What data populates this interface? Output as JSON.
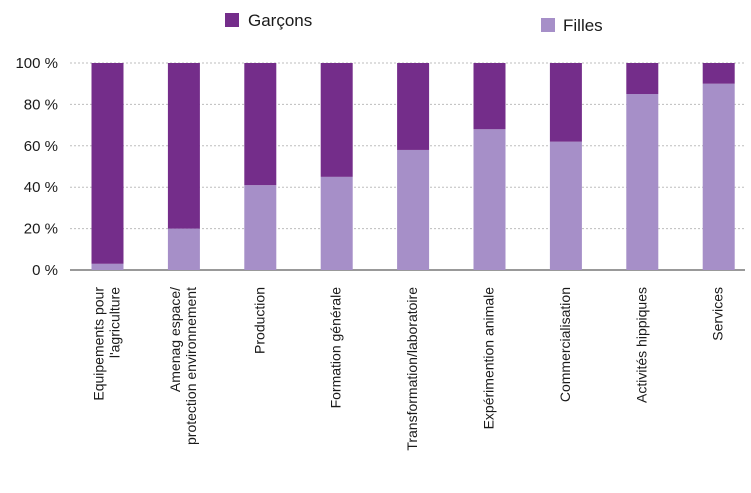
{
  "chart_data": {
    "type": "bar",
    "stacked": true,
    "percent_stacked": true,
    "categories": [
      [
        "Equipements pour",
        "l'agriculture"
      ],
      [
        "Amenag espace/",
        "protection environnement"
      ],
      [
        "Production"
      ],
      [
        "Formation générale"
      ],
      [
        "Transformation/laboratoire"
      ],
      [
        "Expérimention animale"
      ],
      [
        "Commercialisation"
      ],
      [
        "Activités hippiques"
      ],
      [
        "Services"
      ]
    ],
    "series": [
      {
        "name": "Filles",
        "color": "#a68fc8",
        "values": [
          3,
          20,
          41,
          45,
          58,
          68,
          62,
          85,
          90
        ]
      },
      {
        "name": "Garçons",
        "color": "#742d8a",
        "values": [
          97,
          80,
          59,
          55,
          42,
          32,
          38,
          15,
          10
        ]
      }
    ],
    "ylim": [
      0,
      100
    ],
    "yticks": [
      "0 %",
      "20 %",
      "40 %",
      "60 %",
      "80 %",
      "100 %"
    ],
    "grid": true,
    "legend": [
      {
        "label": "Garçons",
        "color": "#742d8a"
      },
      {
        "label": "Filles",
        "color": "#a68fc8"
      }
    ],
    "legend_position": "top"
  }
}
